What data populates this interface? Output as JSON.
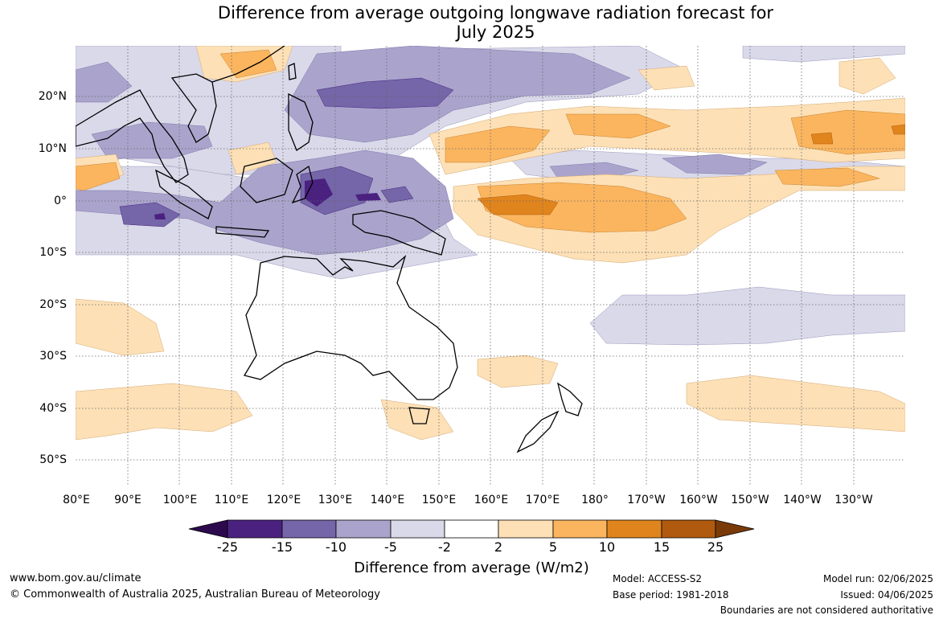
{
  "title_line1": "Difference from average outgoing longwave radiation forecast for",
  "title_line2": "July 2025",
  "lat_labels": [
    "20°N",
    "10°N",
    "0°",
    "10°S",
    "20°S",
    "30°S",
    "40°S",
    "50°S"
  ],
  "lon_labels": [
    "80°E",
    "90°E",
    "100°E",
    "110°E",
    "120°E",
    "130°E",
    "140°E",
    "150°E",
    "160°E",
    "170°E",
    "180°",
    "170°W",
    "160°W",
    "150°W",
    "140°W",
    "130°W"
  ],
  "colorbar": {
    "ticks": [
      "-25",
      "-15",
      "-10",
      "-5",
      "-2",
      "2",
      "5",
      "10",
      "15",
      "25"
    ],
    "colors": [
      "#2d0a4e",
      "#4b2180",
      "#7466a8",
      "#aaa4cc",
      "#d9d9ea",
      "#ffffff",
      "#fde0b6",
      "#fbb55f",
      "#e0851e",
      "#b05a0f",
      "#7a3a08"
    ],
    "title": "Difference from average (W/m2)"
  },
  "footer": {
    "website": "www.bom.gov.au/climate",
    "copyright": "© Commonwealth of Australia 2025, Australian Bureau of Meteorology",
    "model": "Model: ACCESS-S2",
    "base_period": "Base period: 1981-2018",
    "model_run": "Model run: 02/06/2025",
    "issued": "Issued: 04/06/2025",
    "disclaimer": "Boundaries are not considered authoritative"
  }
}
